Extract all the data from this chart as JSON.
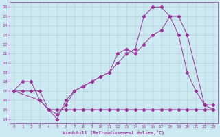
{
  "xlabel": "Windchill (Refroidissement éolien,°C)",
  "background_color": "#cce8f0",
  "grid_color": "#b0ccd8",
  "line_color": "#993399",
  "xlim": [
    -0.5,
    23.5
  ],
  "ylim": [
    13.5,
    26.5
  ],
  "xticks": [
    0,
    1,
    2,
    3,
    4,
    5,
    6,
    7,
    8,
    9,
    10,
    11,
    12,
    13,
    14,
    15,
    16,
    17,
    18,
    19,
    20,
    21,
    22,
    23
  ],
  "yticks": [
    14,
    15,
    16,
    17,
    18,
    19,
    20,
    21,
    22,
    23,
    24,
    25,
    26
  ],
  "line1_x": [
    0,
    1,
    2,
    3,
    4,
    5,
    6,
    7,
    8,
    9,
    10,
    11,
    12,
    13,
    14,
    15,
    16,
    17,
    18,
    19,
    20,
    21,
    22,
    23
  ],
  "line1_y": [
    17,
    18,
    18,
    16,
    15,
    14.5,
    15.5,
    17,
    17.5,
    18,
    18.5,
    19,
    20,
    21,
    21.5,
    25,
    26,
    26,
    25,
    23,
    19,
    17,
    15.5,
    15
  ],
  "line2_x": [
    0,
    3,
    4,
    5,
    6,
    7,
    8,
    9,
    10,
    11,
    12,
    13,
    14,
    15,
    16,
    17,
    18,
    19,
    20,
    22,
    23
  ],
  "line2_y": [
    17,
    16,
    15,
    14,
    16,
    17,
    17.5,
    18,
    18.5,
    19,
    21,
    21.5,
    21,
    22,
    23,
    23.5,
    25,
    25,
    23,
    15.5,
    15.5
  ],
  "line3_x": [
    0,
    1,
    2,
    3,
    4,
    5,
    6,
    7,
    8,
    9,
    10,
    11,
    12,
    13,
    14,
    15,
    16,
    17,
    18,
    19,
    20,
    21,
    22,
    23
  ],
  "line3_y": [
    17,
    17,
    17,
    17,
    15,
    15,
    15,
    15,
    15,
    15,
    15,
    15,
    15,
    15,
    15,
    15,
    15,
    15,
    15,
    15,
    15,
    15,
    15,
    15
  ]
}
